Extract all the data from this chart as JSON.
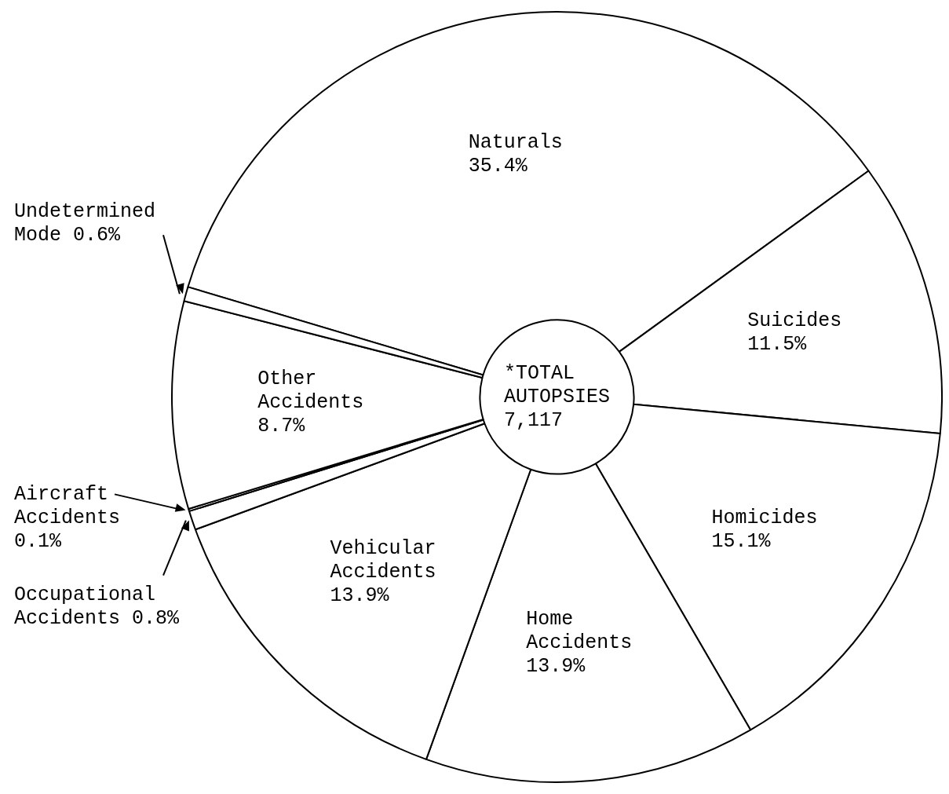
{
  "chart_data": {
    "type": "donut",
    "categories": [
      "Naturals",
      "Suicides",
      "Homicides",
      "Home Accidents",
      "Vehicular Accidents",
      "Occupational Accidents",
      "Aircraft Accidents",
      "Other Accidents",
      "Undetermined Mode"
    ],
    "values": [
      35.4,
      11.5,
      15.1,
      13.9,
      13.9,
      0.8,
      0.1,
      8.7,
      0.6
    ],
    "value_labels": [
      "35.4%",
      "11.5%",
      "15.1%",
      "13.9%",
      "13.9%",
      "0.8%",
      "0.1%",
      "8.7%",
      "0.6%"
    ],
    "colors": [
      "#ffffff",
      "#ffffff",
      "#ffffff",
      "#ffffff",
      "#ffffff",
      "#ffffff",
      "#ffffff",
      "#ffffff",
      "#ffffff"
    ],
    "annotations": [
      "*TOTAL AUTOPSIES 7,117"
    ],
    "legend": false
  }
}
